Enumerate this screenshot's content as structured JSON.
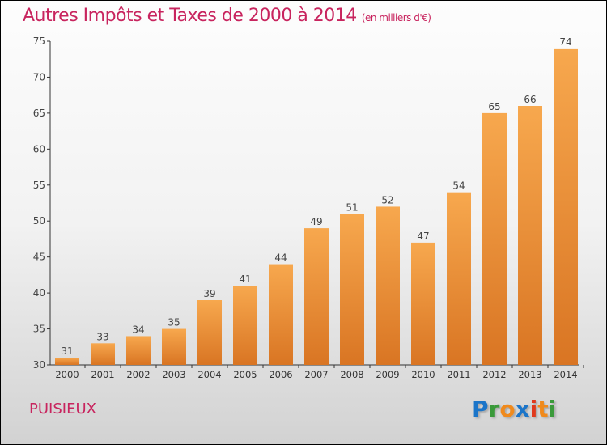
{
  "title": "Autres Impôts et Taxes de 2000 à 2014",
  "subtitle": "(en milliers d'€)",
  "place": "PUISIEUX",
  "logo": "Proxiti",
  "colors": {
    "bar_light": "#f7a84e",
    "bar_dark": "#d97523",
    "title": "#c8245e"
  },
  "chart_data": {
    "type": "bar",
    "title": "Autres Impôts et Taxes de 2000 à 2014",
    "ylabel": "en milliers d'€",
    "categories": [
      "2000",
      "2001",
      "2002",
      "2003",
      "2004",
      "2005",
      "2006",
      "2007",
      "2008",
      "2009",
      "2010",
      "2011",
      "2012",
      "2013",
      "2014"
    ],
    "values": [
      31,
      33,
      34,
      35,
      39,
      41,
      44,
      49,
      51,
      52,
      47,
      54,
      65,
      66,
      74
    ],
    "ylim": [
      30,
      75
    ],
    "yticks": [
      30,
      35,
      40,
      45,
      50,
      55,
      60,
      65,
      70,
      75
    ]
  }
}
